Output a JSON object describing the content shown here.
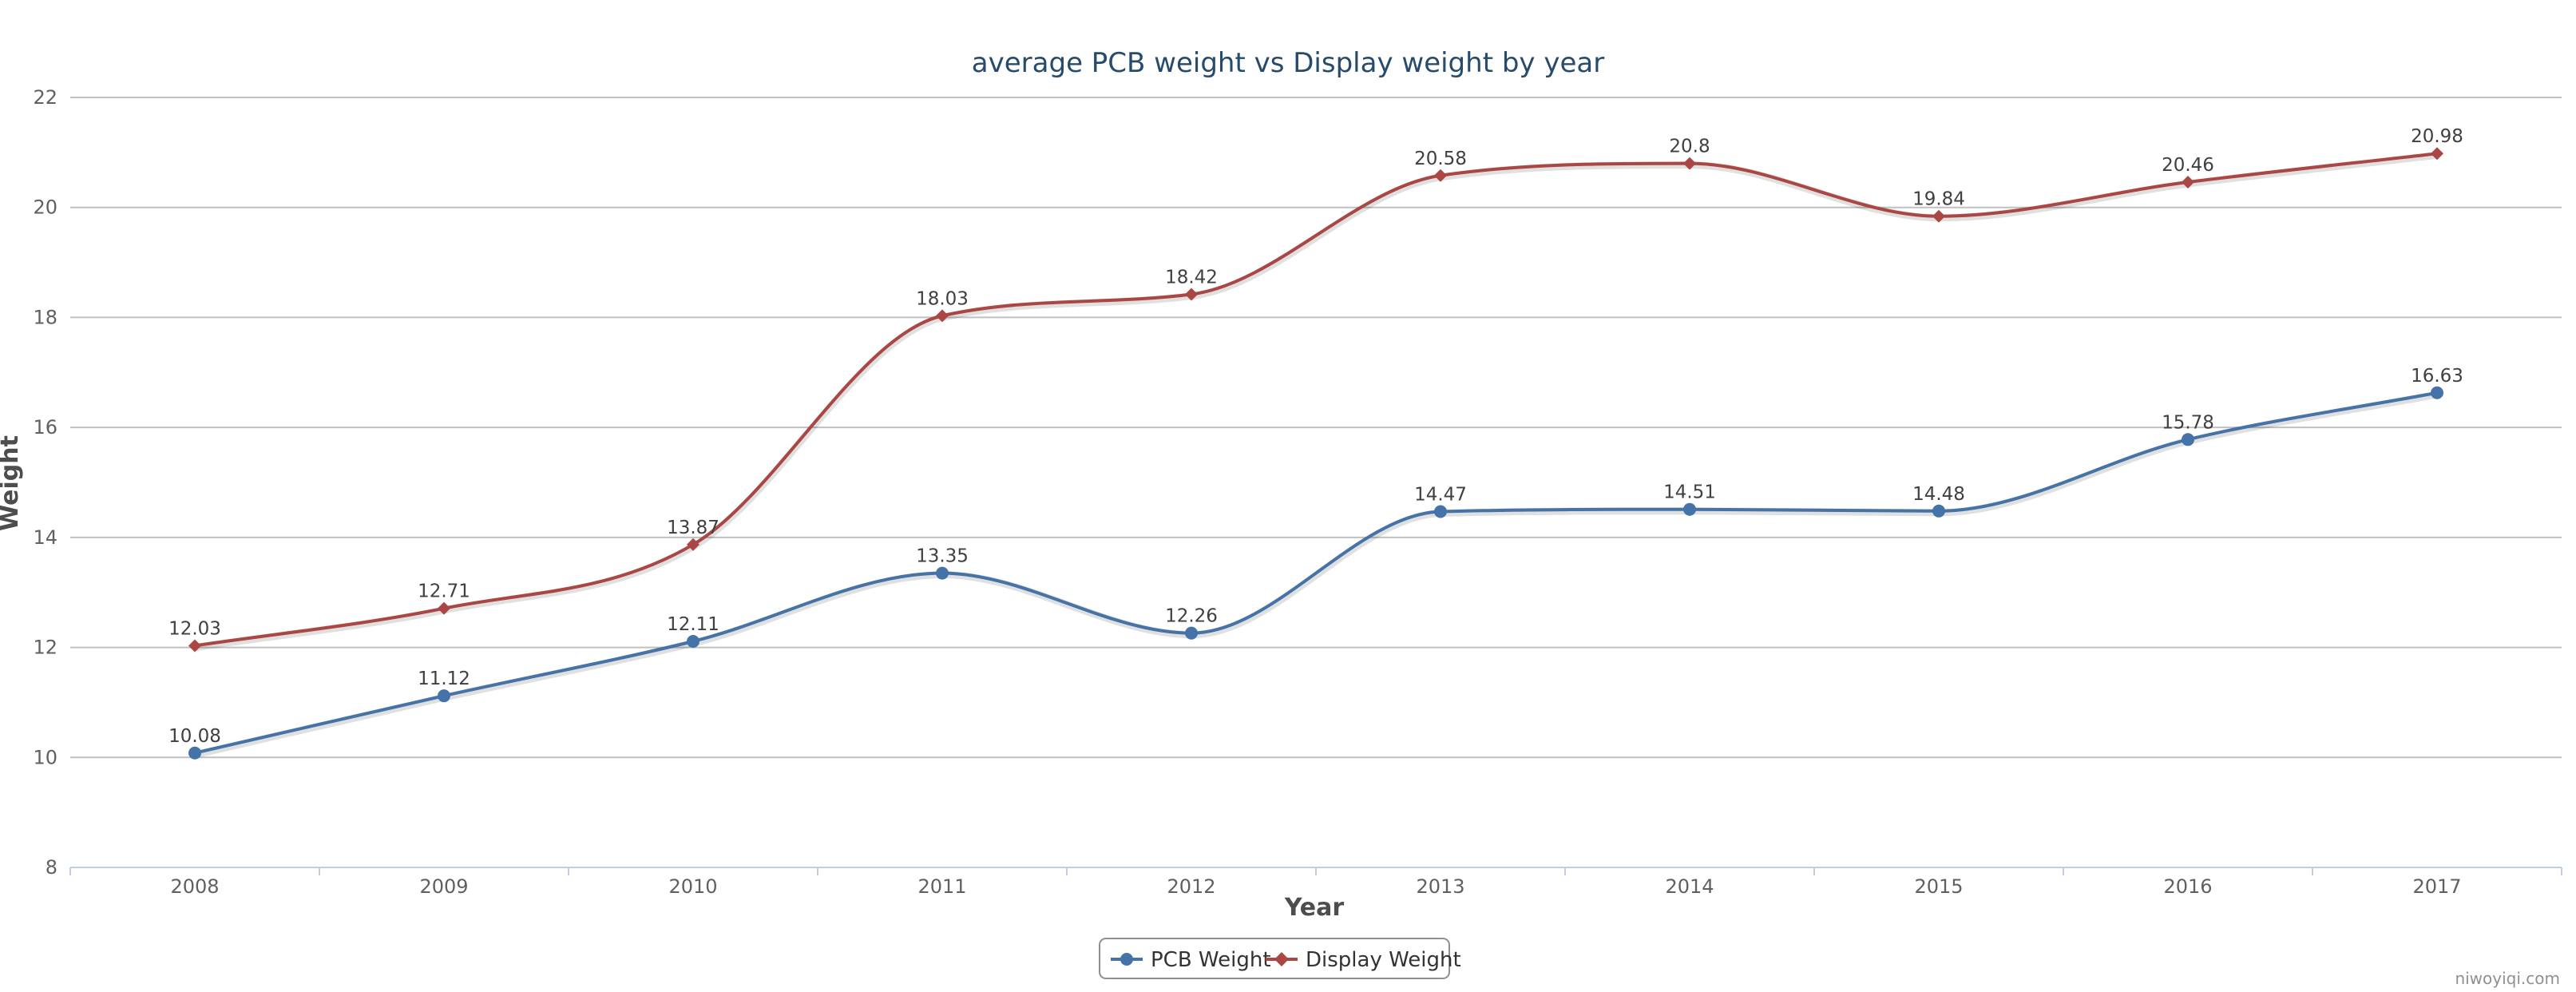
{
  "chart_data": {
    "type": "line",
    "title": "average PCB weight vs Display weight by year",
    "xlabel": "Year",
    "ylabel": "Weight",
    "categories": [
      "2008",
      "2009",
      "2010",
      "2011",
      "2012",
      "2013",
      "2014",
      "2015",
      "2016",
      "2017"
    ],
    "ylim": [
      8,
      22
    ],
    "yticks": [
      8,
      10,
      12,
      14,
      16,
      18,
      20,
      22
    ],
    "grid": true,
    "legend_position": "bottom-center",
    "series": [
      {
        "name": "PCB Weight",
        "color": "#4572a7",
        "marker": "circle",
        "values": [
          10.08,
          11.12,
          12.11,
          13.35,
          12.26,
          14.47,
          14.51,
          14.48,
          15.78,
          16.63
        ]
      },
      {
        "name": "Display Weight",
        "color": "#aa4643",
        "marker": "diamond",
        "values": [
          12.03,
          12.71,
          13.87,
          18.03,
          18.42,
          20.58,
          20.8,
          19.84,
          20.46,
          20.98
        ]
      }
    ]
  },
  "credit": "niwoyiqi.com"
}
